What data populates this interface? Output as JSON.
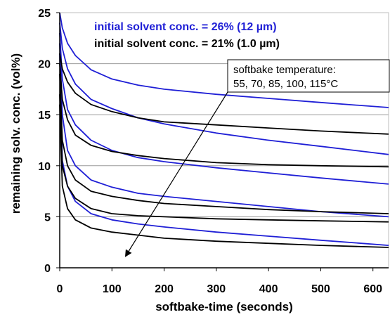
{
  "chart_data": {
    "type": "line",
    "xlabel": "softbake-time (seconds)",
    "ylabel": "remaining solv. conc. (vol%)",
    "xlim": [
      0,
      630
    ],
    "ylim": [
      0,
      25
    ],
    "xticks": [
      "0",
      "100",
      "200",
      "300",
      "400",
      "500",
      "600"
    ],
    "yticks": [
      "0",
      "5",
      "10",
      "15",
      "20",
      "25"
    ],
    "grid": "horizontal",
    "legend": [
      {
        "text": "initial solvent conc. = 26% (12 µm)",
        "color": "#1f1fd6"
      },
      {
        "text": "initial solvent conc. = 21% (1.0 µm)",
        "color": "#000000"
      }
    ],
    "annotation": {
      "line1": "softbake temperature:",
      "line2": "55, 70, 85, 100, 115°C"
    },
    "series": [
      {
        "color": "#1f1fd6",
        "x": [
          0,
          5,
          15,
          30,
          60,
          100,
          150,
          200,
          300,
          400,
          500,
          630
        ],
        "y": [
          25,
          23.5,
          22,
          20.8,
          19.4,
          18.5,
          17.9,
          17.5,
          17.0,
          16.6,
          16.2,
          15.7
        ]
      },
      {
        "color": "#1f1fd6",
        "x": [
          0,
          5,
          15,
          30,
          60,
          100,
          150,
          200,
          300,
          400,
          500,
          630
        ],
        "y": [
          24,
          21.5,
          19.5,
          18.0,
          16.5,
          15.6,
          14.7,
          14.1,
          13.2,
          12.5,
          11.9,
          11.1
        ]
      },
      {
        "color": "#1f1fd6",
        "x": [
          0,
          5,
          15,
          30,
          60,
          100,
          150,
          200,
          300,
          400,
          500,
          630
        ],
        "y": [
          23,
          18.5,
          15.5,
          14.0,
          12.5,
          11.5,
          10.8,
          10.4,
          9.8,
          9.3,
          8.8,
          8.2
        ]
      },
      {
        "color": "#1f1fd6",
        "x": [
          0,
          5,
          15,
          30,
          60,
          100,
          150,
          200,
          300,
          400,
          500,
          630
        ],
        "y": [
          22,
          15.0,
          11.5,
          10.0,
          8.6,
          7.9,
          7.3,
          7.0,
          6.5,
          6.0,
          5.5,
          5.0
        ]
      },
      {
        "color": "#1f1fd6",
        "x": [
          0,
          5,
          15,
          30,
          60,
          100,
          150,
          200,
          300,
          400,
          500,
          630
        ],
        "y": [
          21,
          10.5,
          8.0,
          6.5,
          5.3,
          4.7,
          4.3,
          4.0,
          3.5,
          3.1,
          2.7,
          2.2
        ]
      },
      {
        "color": "#000000",
        "x": [
          0,
          5,
          15,
          30,
          60,
          100,
          150,
          200,
          300,
          400,
          500,
          630
        ],
        "y": [
          21,
          19.5,
          18.2,
          17.1,
          16.0,
          15.3,
          14.7,
          14.3,
          14.0,
          13.7,
          13.4,
          13.1
        ]
      },
      {
        "color": "#000000",
        "x": [
          0,
          5,
          15,
          30,
          60,
          100,
          150,
          200,
          300,
          400,
          500,
          630
        ],
        "y": [
          20,
          16.5,
          14.5,
          13.0,
          12.0,
          11.4,
          11.0,
          10.7,
          10.3,
          10.1,
          10.0,
          9.9
        ]
      },
      {
        "color": "#000000",
        "x": [
          0,
          5,
          15,
          30,
          60,
          100,
          150,
          200,
          300,
          400,
          500,
          630
        ],
        "y": [
          19,
          12.5,
          10.0,
          8.6,
          7.5,
          7.0,
          6.6,
          6.3,
          6.0,
          5.7,
          5.5,
          5.3
        ]
      },
      {
        "color": "#000000",
        "x": [
          0,
          5,
          15,
          30,
          60,
          100,
          150,
          200,
          300,
          400,
          500,
          630
        ],
        "y": [
          17,
          10.0,
          8.0,
          6.8,
          5.8,
          5.3,
          5.1,
          5.0,
          4.8,
          4.7,
          4.6,
          4.5
        ]
      },
      {
        "color": "#000000",
        "x": [
          0,
          5,
          15,
          30,
          60,
          100,
          150,
          200,
          300,
          400,
          500,
          630
        ],
        "y": [
          16,
          8.0,
          5.8,
          4.7,
          3.9,
          3.5,
          3.2,
          2.9,
          2.6,
          2.4,
          2.2,
          2.0
        ]
      }
    ]
  }
}
